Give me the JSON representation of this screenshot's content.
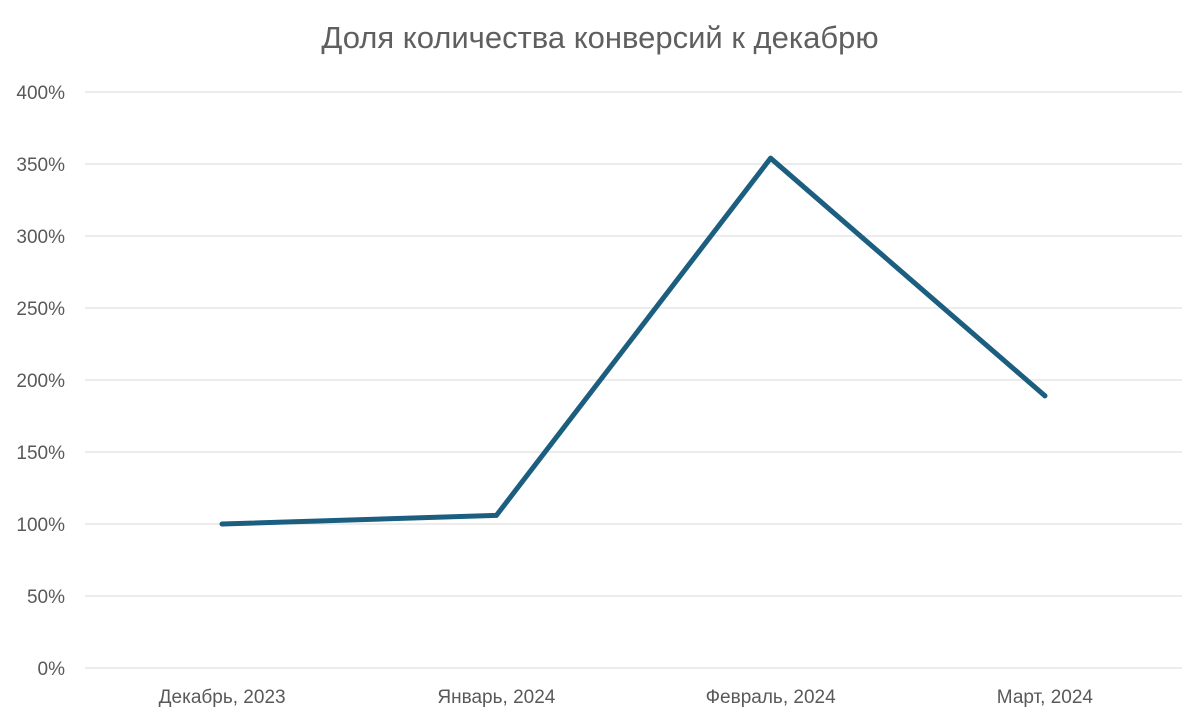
{
  "chart_data": {
    "type": "line",
    "title": "Доля количества конверсий к декабрю",
    "xlabel": "",
    "ylabel": "",
    "categories": [
      "Декабрь, 2023",
      "Январь, 2024",
      "Февраль, 2024",
      "Март, 2024"
    ],
    "series": [
      {
        "values": [
          100,
          106,
          354,
          189
        ],
        "color": "#1b5e80"
      }
    ],
    "ylim": [
      0,
      400
    ],
    "y_ticks": [
      0,
      50,
      100,
      150,
      200,
      250,
      300,
      350,
      400
    ],
    "y_tick_labels": [
      "0%",
      "50%",
      "100%",
      "150%",
      "200%",
      "250%",
      "300%",
      "350%",
      "400%"
    ],
    "grid": true,
    "legend": "none"
  }
}
